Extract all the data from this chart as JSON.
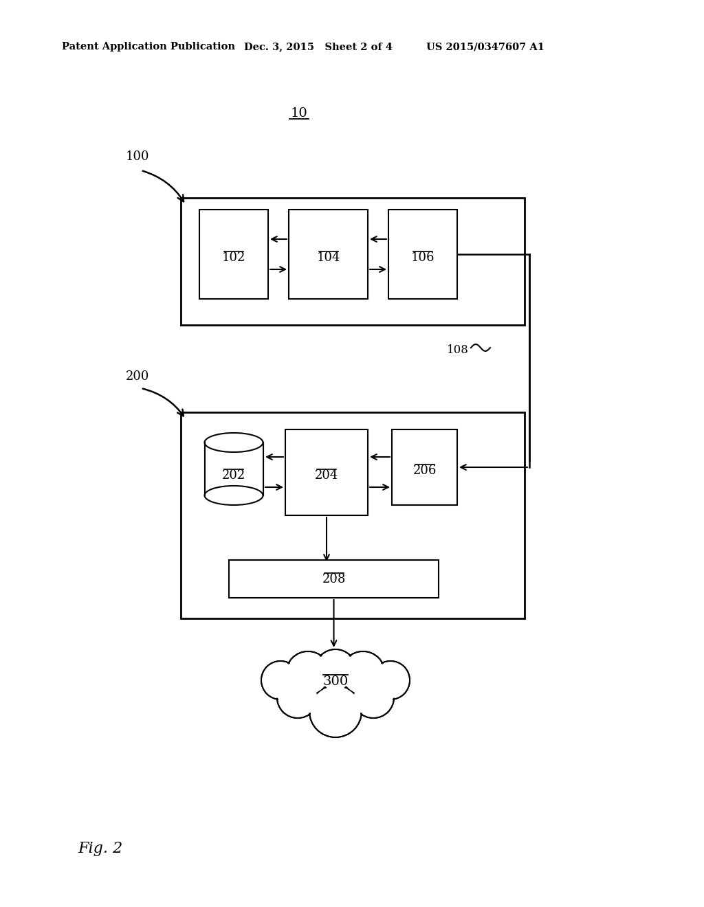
{
  "bg_color": "#ffffff",
  "header_left": "Patent Application Publication",
  "header_mid": "Dec. 3, 2015   Sheet 2 of 4",
  "header_right": "US 2015/0347607 A1",
  "fig_label": "Fig. 2",
  "box10_label": "10",
  "box100_label": "100",
  "box102_label": "102",
  "box104_label": "104",
  "box106_label": "106",
  "box108_label": "108",
  "box200_label": "200",
  "box202_label": "202",
  "box204_label": "204",
  "box206_label": "206",
  "box208_label": "208",
  "box300_label": "300"
}
